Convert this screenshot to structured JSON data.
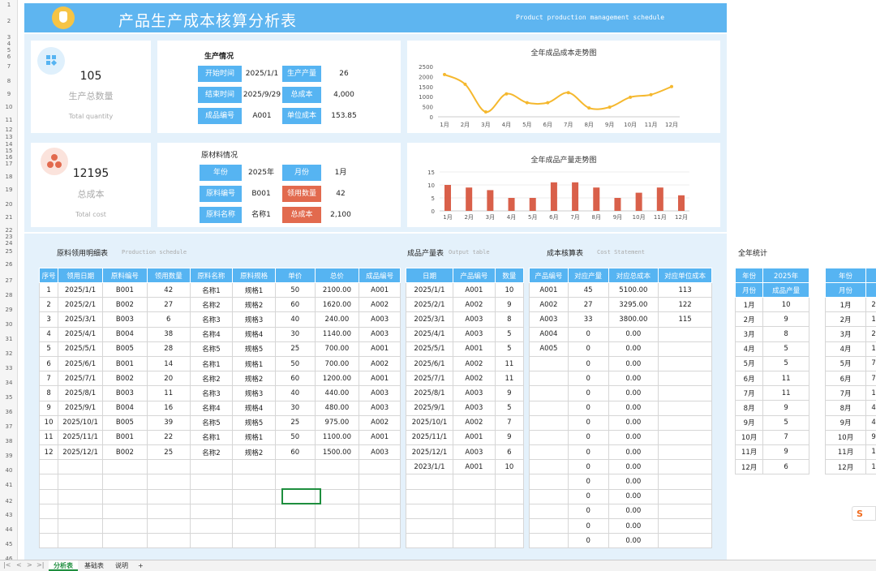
{
  "title": {
    "main": "产品生产成本核算分析表",
    "sub": "Product production management schedule"
  },
  "kpi": [
    {
      "value": "105",
      "label": "生产总数量",
      "en": "Total quantity",
      "color": "#56b4f2"
    },
    {
      "value": "12195",
      "label": "总成本",
      "en": "Total cost",
      "color": "#e26a4e"
    }
  ],
  "production": {
    "title": "生产情况",
    "rows": [
      {
        "l1": "开始时间",
        "v1": "2025/1/1",
        "l2": "生产产量",
        "v2": "26"
      },
      {
        "l1": "结束时间",
        "v1": "2025/9/29",
        "l2": "总成本",
        "v2": "4,000"
      },
      {
        "l1": "成品编号",
        "v1": "A001",
        "l2": "单位成本",
        "v2": "153.85"
      }
    ]
  },
  "material": {
    "title": "原材料情况",
    "rows": [
      {
        "l1": "年份",
        "v1": "2025年",
        "l2": "月份",
        "v2": "1月",
        "red": false
      },
      {
        "l1": "原料编号",
        "v1": "B001",
        "l2": "领用数量",
        "v2": "42",
        "red": true
      },
      {
        "l1": "原料名称",
        "v1": "名称1",
        "l2": "总成本",
        "v2": "2,100",
        "red": true
      }
    ]
  },
  "chart_data": [
    {
      "type": "line",
      "title": "全年成品成本走势图",
      "categories": [
        "1月",
        "2月",
        "3月",
        "4月",
        "5月",
        "6月",
        "7月",
        "8月",
        "9月",
        "10月",
        "11月",
        "12月"
      ],
      "values": [
        2100,
        1620,
        240,
        1140,
        700,
        700,
        1200,
        440,
        480,
        975,
        1100,
        1500
      ],
      "ylim": [
        0,
        2500
      ],
      "yticks": [
        "0",
        "500",
        "1000",
        "1500",
        "2000",
        "2500"
      ],
      "color": "#f5b82e"
    },
    {
      "type": "bar",
      "title": "全年成品产量走势图",
      "categories": [
        "1月",
        "2月",
        "3月",
        "4月",
        "5月",
        "6月",
        "7月",
        "8月",
        "9月",
        "10月",
        "11月",
        "12月"
      ],
      "values": [
        10,
        9,
        8,
        5,
        5,
        11,
        11,
        9,
        5,
        7,
        9,
        6
      ],
      "ylim": [
        0,
        15
      ],
      "yticks": [
        "0",
        "5",
        "10",
        "15"
      ],
      "color": "#d9604a"
    }
  ],
  "tables": {
    "detail": {
      "title": "原料领用明细表",
      "sub": "Production schedule",
      "headers": [
        "序号",
        "领用日期",
        "原料编号",
        "领用数量",
        "原料名称",
        "原料规格",
        "单价",
        "总价",
        "成品编号"
      ],
      "rows": [
        [
          "1",
          "2025/1/1",
          "B001",
          "42",
          "名称1",
          "规格1",
          "50",
          "2100.00",
          "A001"
        ],
        [
          "2",
          "2025/2/1",
          "B002",
          "27",
          "名称2",
          "规格2",
          "60",
          "1620.00",
          "A002"
        ],
        [
          "3",
          "2025/3/1",
          "B003",
          "6",
          "名称3",
          "规格3",
          "40",
          "240.00",
          "A003"
        ],
        [
          "4",
          "2025/4/1",
          "B004",
          "38",
          "名称4",
          "规格4",
          "30",
          "1140.00",
          "A003"
        ],
        [
          "5",
          "2025/5/1",
          "B005",
          "28",
          "名称5",
          "规格5",
          "25",
          "700.00",
          "A001"
        ],
        [
          "6",
          "2025/6/1",
          "B001",
          "14",
          "名称1",
          "规格1",
          "50",
          "700.00",
          "A002"
        ],
        [
          "7",
          "2025/7/1",
          "B002",
          "20",
          "名称2",
          "规格2",
          "60",
          "1200.00",
          "A001"
        ],
        [
          "8",
          "2025/8/1",
          "B003",
          "11",
          "名称3",
          "规格3",
          "40",
          "440.00",
          "A003"
        ],
        [
          "9",
          "2025/9/1",
          "B004",
          "16",
          "名称4",
          "规格4",
          "30",
          "480.00",
          "A003"
        ],
        [
          "10",
          "2025/10/1",
          "B005",
          "39",
          "名称5",
          "规格5",
          "25",
          "975.00",
          "A002"
        ],
        [
          "11",
          "2025/11/1",
          "B001",
          "22",
          "名称1",
          "规格1",
          "50",
          "1100.00",
          "A001"
        ],
        [
          "12",
          "2025/12/1",
          "B002",
          "25",
          "名称2",
          "规格2",
          "60",
          "1500.00",
          "A003"
        ],
        [
          "",
          "",
          "",
          "",
          "",
          "",
          "",
          "",
          ""
        ],
        [
          "",
          "",
          "",
          "",
          "",
          "",
          "",
          "",
          ""
        ],
        [
          "",
          "",
          "",
          "",
          "",
          "",
          "",
          "",
          ""
        ],
        [
          "",
          "",
          "",
          "",
          "",
          "",
          "",
          "",
          ""
        ],
        [
          "",
          "",
          "",
          "",
          "",
          "",
          "",
          "",
          ""
        ],
        [
          "",
          "",
          "",
          "",
          "",
          "",
          "",
          "",
          ""
        ]
      ]
    },
    "output": {
      "title": "成品产量表",
      "sub": "Output table",
      "headers": [
        "日期",
        "产品编号",
        "数量"
      ],
      "rows": [
        [
          "2025/1/1",
          "A001",
          "10"
        ],
        [
          "2025/2/1",
          "A002",
          "9"
        ],
        [
          "2025/3/1",
          "A003",
          "8"
        ],
        [
          "2025/4/1",
          "A003",
          "5"
        ],
        [
          "2025/5/1",
          "A001",
          "5"
        ],
        [
          "2025/6/1",
          "A002",
          "11"
        ],
        [
          "2025/7/1",
          "A002",
          "11"
        ],
        [
          "2025/8/1",
          "A003",
          "9"
        ],
        [
          "2025/9/1",
          "A003",
          "5"
        ],
        [
          "2025/10/1",
          "A002",
          "7"
        ],
        [
          "2025/11/1",
          "A001",
          "9"
        ],
        [
          "2025/12/1",
          "A003",
          "6"
        ],
        [
          "2023/1/1",
          "A001",
          "10"
        ],
        [
          "",
          "",
          ""
        ],
        [
          "",
          "",
          ""
        ],
        [
          "",
          "",
          ""
        ],
        [
          "",
          "",
          ""
        ],
        [
          "",
          "",
          ""
        ]
      ]
    },
    "cost": {
      "title": "成本核算表",
      "sub": "Cost Statement",
      "headers": [
        "产品编号",
        "对应产量",
        "对应总成本",
        "对应单位成本"
      ],
      "rows": [
        [
          "A001",
          "45",
          "5100.00",
          "113"
        ],
        [
          "A002",
          "27",
          "3295.00",
          "122"
        ],
        [
          "A003",
          "33",
          "3800.00",
          "115"
        ],
        [
          "A004",
          "0",
          "0.00",
          ""
        ],
        [
          "A005",
          "0",
          "0.00",
          ""
        ],
        [
          "",
          "0",
          "0.00",
          ""
        ],
        [
          "",
          "0",
          "0.00",
          ""
        ],
        [
          "",
          "0",
          "0.00",
          ""
        ],
        [
          "",
          "0",
          "0.00",
          ""
        ],
        [
          "",
          "0",
          "0.00",
          ""
        ],
        [
          "",
          "0",
          "0.00",
          ""
        ],
        [
          "",
          "0",
          "0.00",
          ""
        ],
        [
          "",
          "0",
          "0.00",
          ""
        ],
        [
          "",
          "0",
          "0.00",
          ""
        ],
        [
          "",
          "0",
          "0.00",
          ""
        ],
        [
          "",
          "0",
          "0.00",
          ""
        ],
        [
          "",
          "0",
          "0.00",
          ""
        ],
        [
          "",
          "0",
          "0.00",
          ""
        ]
      ]
    },
    "annual": {
      "title": "全年统计",
      "year_label": "年份",
      "year_value": "2025年",
      "month_label": "月份",
      "qty_label": "成品产量",
      "rows": [
        [
          "1月",
          "10"
        ],
        [
          "2月",
          "9"
        ],
        [
          "3月",
          "8"
        ],
        [
          "4月",
          "5"
        ],
        [
          "5月",
          "5"
        ],
        [
          "6月",
          "11"
        ],
        [
          "7月",
          "11"
        ],
        [
          "8月",
          "9"
        ],
        [
          "9月",
          "5"
        ],
        [
          "10月",
          "7"
        ],
        [
          "11月",
          "9"
        ],
        [
          "12月",
          "6"
        ]
      ],
      "partial_header": [
        "年份",
        "月份"
      ],
      "partial_rows": [
        [
          "1月",
          "2"
        ],
        [
          "2月",
          "1"
        ],
        [
          "3月",
          "2"
        ],
        [
          "4月",
          "1"
        ],
        [
          "5月",
          "7"
        ],
        [
          "6月",
          "7"
        ],
        [
          "7月",
          "1"
        ],
        [
          "8月",
          "4"
        ],
        [
          "9月",
          "4"
        ],
        [
          "10月",
          "9"
        ],
        [
          "11月",
          "1"
        ],
        [
          "12月",
          "1"
        ]
      ]
    }
  },
  "row_numbers": [
    "1",
    "2",
    "3",
    "4",
    "5",
    "6",
    "7",
    "8",
    "9",
    "10",
    "11",
    "12",
    "13",
    "14",
    "15",
    "16",
    "17",
    "18",
    "19",
    "20",
    "21",
    "22",
    "23",
    "24",
    "25",
    "26",
    "27",
    "28",
    "29",
    "30",
    "31",
    "32",
    "33",
    "34",
    "35",
    "36",
    "37",
    "38",
    "39",
    "40",
    "41",
    "42",
    "43",
    "44",
    "45",
    "46"
  ],
  "tabs": [
    "分析表",
    "基础表",
    "说明"
  ],
  "tab_add": "+",
  "nav": [
    "|<",
    "<",
    ">",
    ">|"
  ],
  "ime": "S"
}
